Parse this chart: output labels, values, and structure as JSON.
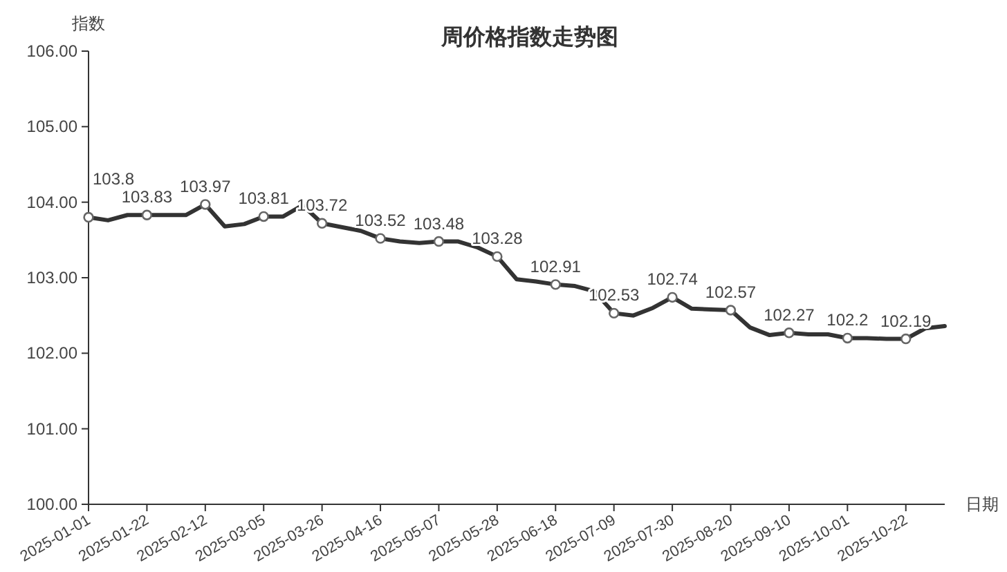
{
  "chart_data": {
    "type": "line",
    "title": "周价格指数走势图",
    "ylabel": "指数",
    "xlabel": "日期",
    "categories": [
      "2025-01-01",
      null,
      null,
      "2025-01-22",
      null,
      null,
      "2025-02-12",
      null,
      null,
      "2025-03-05",
      null,
      null,
      "2025-03-26",
      null,
      null,
      "2025-04-16",
      null,
      null,
      "2025-05-07",
      null,
      null,
      "2025-05-28",
      null,
      null,
      "2025-06-18",
      null,
      null,
      "2025-07-09",
      null,
      null,
      "2025-07-30",
      null,
      null,
      "2025-08-20",
      null,
      null,
      "2025-09-10",
      null,
      null,
      "2025-10-01",
      null,
      null,
      "2025-10-22",
      null,
      null
    ],
    "values": [
      103.8,
      103.76,
      103.83,
      103.83,
      103.83,
      103.83,
      103.97,
      103.68,
      103.71,
      103.81,
      103.81,
      103.96,
      103.72,
      103.67,
      103.62,
      103.52,
      103.48,
      103.46,
      103.48,
      103.48,
      103.4,
      103.28,
      102.98,
      102.95,
      102.91,
      102.89,
      102.82,
      102.53,
      102.5,
      102.6,
      102.74,
      102.59,
      102.58,
      102.57,
      102.34,
      102.24,
      102.27,
      102.25,
      102.25,
      102.2,
      102.2,
      102.19,
      102.19,
      102.33,
      102.36
    ],
    "value_labels": [
      "103.8",
      null,
      null,
      "103.83",
      null,
      null,
      "103.97",
      null,
      null,
      "103.81",
      null,
      null,
      "103.72",
      null,
      null,
      "103.52",
      null,
      null,
      "103.48",
      null,
      null,
      "103.28",
      null,
      null,
      "102.91",
      null,
      null,
      "102.53",
      null,
      null,
      "102.74",
      null,
      null,
      "102.57",
      null,
      null,
      "102.27",
      null,
      null,
      "102.2",
      null,
      null,
      "102.19",
      null,
      null
    ],
    "color": "#333333",
    "ylim": [
      100,
      106
    ],
    "yticks": [
      {
        "value": 100,
        "label": "100.00"
      },
      {
        "value": 101,
        "label": "101.00"
      },
      {
        "value": 102,
        "label": "102.00"
      },
      {
        "value": 103,
        "label": "103.00"
      },
      {
        "value": 104,
        "label": "104.00"
      },
      {
        "value": 105,
        "label": "105.00"
      },
      {
        "value": 106,
        "label": "106.00"
      }
    ]
  }
}
